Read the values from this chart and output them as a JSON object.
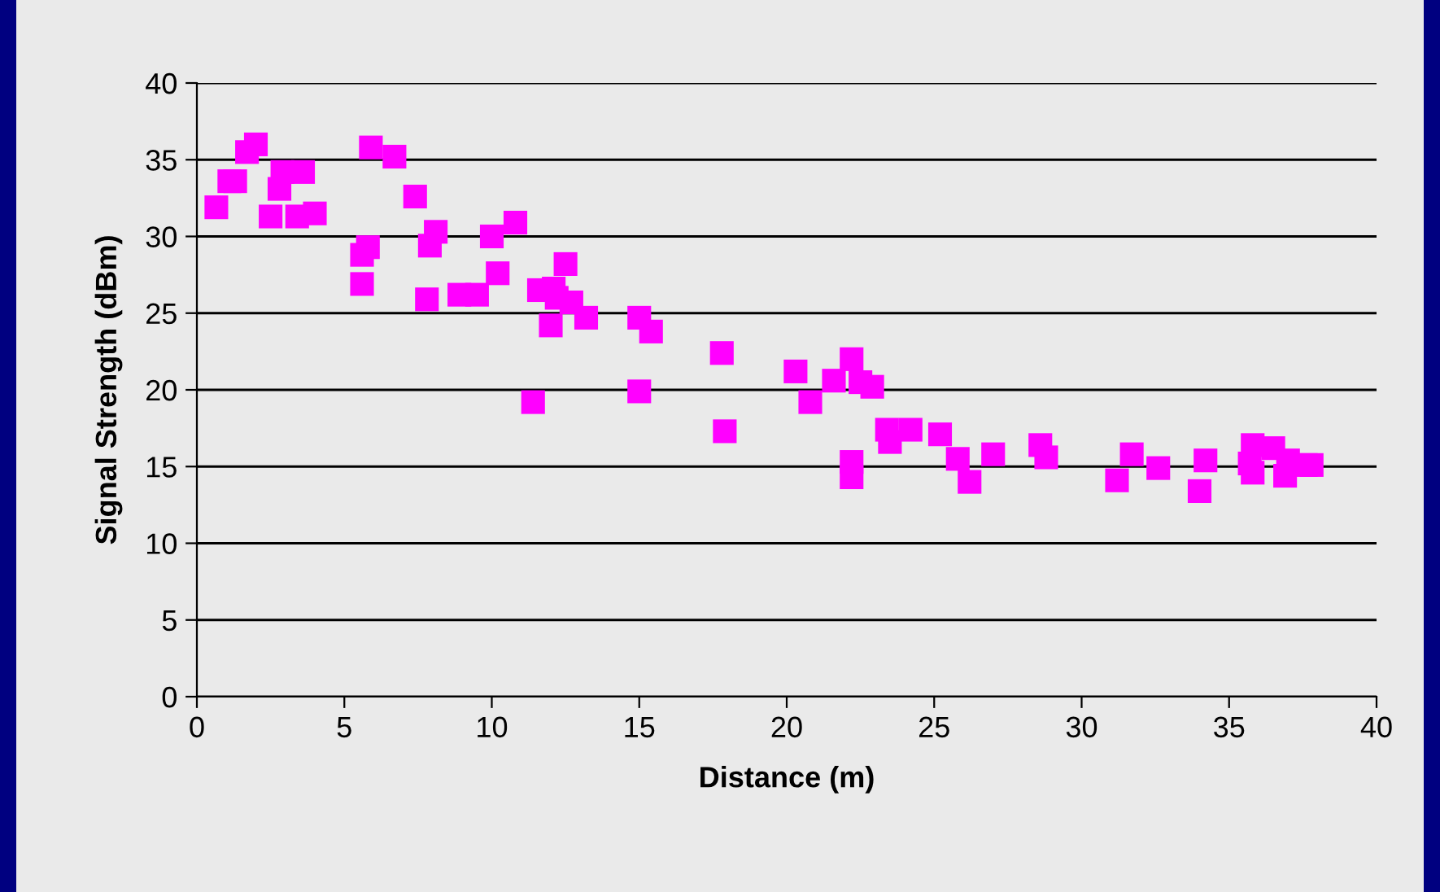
{
  "chart_data": {
    "type": "scatter",
    "xlabel": "Distance (m)",
    "ylabel": "Signal Strength (dBm)",
    "x": [
      0.66,
      1.1,
      1.3,
      1.7,
      2.0,
      2.5,
      2.8,
      2.9,
      3.4,
      3.6,
      4.0,
      5.6,
      5.6,
      5.8,
      5.9,
      6.7,
      7.4,
      7.8,
      7.9,
      8.1,
      8.9,
      9.5,
      10.0,
      10.2,
      10.8,
      11.4,
      11.6,
      12.0,
      12.1,
      12.2,
      12.5,
      12.7,
      13.2,
      15.0,
      15.0,
      15.4,
      17.8,
      17.9,
      20.3,
      20.8,
      21.6,
      22.2,
      22.2,
      22.2,
      22.5,
      22.9,
      23.4,
      23.5,
      24.2,
      25.2,
      25.8,
      26.2,
      27.0,
      28.6,
      28.8,
      31.2,
      31.7,
      32.6,
      34.0,
      34.2,
      35.7,
      35.8,
      35.8,
      36.5,
      36.9,
      37.0,
      37.6,
      37.8
    ],
    "series": [
      {
        "color": "#ff00ff",
        "values": [
          31.9,
          33.6,
          33.6,
          35.5,
          36.0,
          31.3,
          33.1,
          34.2,
          31.3,
          34.2,
          31.5,
          28.8,
          26.9,
          29.3,
          35.8,
          35.2,
          32.6,
          25.9,
          29.4,
          30.3,
          26.2,
          26.2,
          30.0,
          27.6,
          30.9,
          19.2,
          26.5,
          24.2,
          26.6,
          26.0,
          28.2,
          25.7,
          24.7,
          24.7,
          19.9,
          23.8,
          22.4,
          17.3,
          21.2,
          19.2,
          20.6,
          22.0,
          15.3,
          14.3,
          20.5,
          20.2,
          17.4,
          16.6,
          17.4,
          17.1,
          15.5,
          14.0,
          15.8,
          16.4,
          15.6,
          14.1,
          15.8,
          14.9,
          13.4,
          15.4,
          15.2,
          16.4,
          14.6,
          16.2,
          14.4,
          15.4,
          15.1,
          15.1
        ]
      }
    ],
    "xlim": [
      0,
      40
    ],
    "xticks": [
      0,
      5,
      10,
      15,
      20,
      25,
      30,
      35,
      40
    ],
    "ylim": [
      0,
      40
    ],
    "yticks": [
      0,
      5,
      10,
      15,
      20,
      25,
      30,
      35,
      40
    ],
    "grid": "y",
    "marker": "square",
    "legend": false
  }
}
